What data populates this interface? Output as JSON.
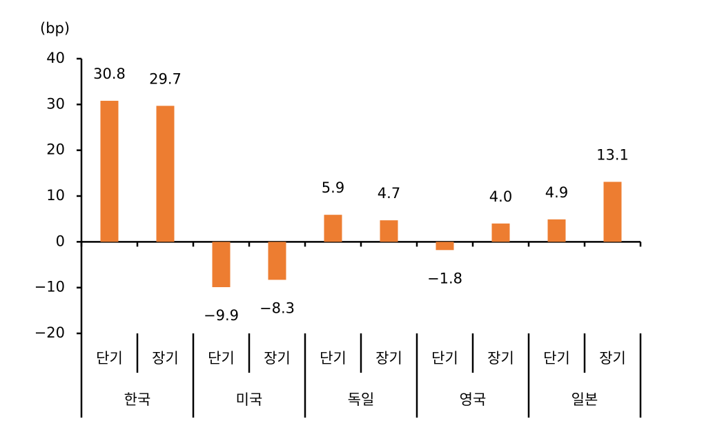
{
  "chart_data": {
    "type": "bar",
    "y_label": "(bp)",
    "categories": [
      "단기",
      "장기",
      "단기",
      "장기",
      "단기",
      "장기",
      "단기",
      "장기",
      "단기",
      "장기"
    ],
    "groups": [
      "한국",
      "미국",
      "독일",
      "영국",
      "일본"
    ],
    "values": [
      30.8,
      29.7,
      -9.9,
      -8.3,
      5.9,
      4.7,
      -1.8,
      4.0,
      4.9,
      13.1
    ],
    "value_labels": [
      "30.8",
      "29.7",
      "−9.9",
      "−8.3",
      "5.9",
      "4.7",
      "−1.8",
      "4.0",
      "4.9",
      "13.1"
    ],
    "color": "#ed7d31",
    "ylim": [
      -20,
      40
    ],
    "yticks": [
      {
        "value": -20,
        "label": "−20"
      },
      {
        "value": -10,
        "label": "−10"
      },
      0,
      10,
      20,
      30,
      40
    ]
  }
}
